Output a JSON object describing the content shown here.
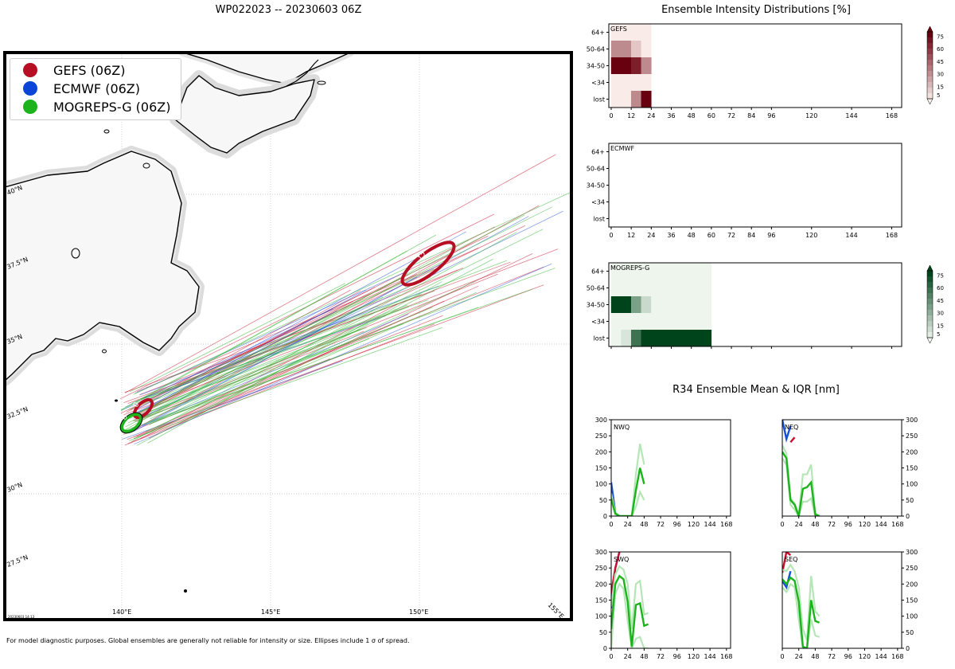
{
  "map": {
    "title": "WP022023 -- 20230603 06Z",
    "lat_labels": [
      "40°N",
      "37.5°N",
      "35°N",
      "32.5°N",
      "30°N",
      "27.5°N"
    ],
    "lon_labels": [
      "140°E",
      "145°E",
      "150°E",
      "155°E"
    ],
    "legend": [
      {
        "label": "GEFS (06Z)",
        "color": "#b70e23"
      },
      {
        "label": "ECMWF (06Z)",
        "color": "#0b45d8"
      },
      {
        "label": "MOGREPS-G (06Z)",
        "color": "#1db31d"
      }
    ],
    "ellipse_labels": {
      "gefs_0": "0",
      "gefs_12": "12",
      "mogreps_0": "0"
    },
    "stamp": "20230603 14:13",
    "footnote": "For model diagnostic purposes. Global ensembles are generally not reliable for intensity or size. Ellipses include 1 σ of spread."
  },
  "intensity": {
    "title": "Ensemble Intensity Distributions [%]",
    "categories": [
      "64+",
      "50-64",
      "34-50",
      "<34",
      "lost"
    ],
    "x_ticks": [
      "0",
      "12",
      "24",
      "36",
      "48",
      "60",
      "72",
      "84",
      "96",
      "120",
      "144",
      "168"
    ],
    "colorbar_ticks": [
      "75",
      "60",
      "45",
      "30",
      "15",
      "5"
    ],
    "panels": [
      {
        "name": "GEFS",
        "label": "GEFS",
        "colormap": "reds"
      },
      {
        "name": "ECMWF",
        "label": "ECMWF",
        "colormap": "none"
      },
      {
        "name": "MOGREPS-G",
        "label": "MOGREPS-G",
        "colormap": "greens"
      }
    ]
  },
  "r34": {
    "title": "R34 Ensemble Mean & IQR [nm]",
    "x_ticks": [
      "0",
      "24",
      "48",
      "72",
      "96",
      "120",
      "144",
      "168"
    ],
    "y_ticks": [
      "300",
      "250",
      "200",
      "150",
      "100",
      "50",
      "0"
    ],
    "quadrants": [
      {
        "label": "NWQ"
      },
      {
        "label": "NEQ"
      },
      {
        "label": "SWQ"
      },
      {
        "label": "SEQ"
      }
    ]
  },
  "chart_data": [
    {
      "type": "heatmap",
      "title": "GEFS",
      "x_hours": [
        0,
        6,
        12,
        18
      ],
      "y_categories": [
        "64+",
        "50-64",
        "34-50",
        "<34",
        "lost"
      ],
      "values": [
        [
          3,
          3,
          3,
          3
        ],
        [
          35,
          35,
          15,
          3
        ],
        [
          80,
          80,
          70,
          35
        ],
        [
          3,
          3,
          3,
          3
        ],
        [
          3,
          3,
          35,
          80
        ]
      ],
      "colorbar_range": [
        0,
        80
      ]
    },
    {
      "type": "heatmap",
      "title": "ECMWF",
      "x_hours": [],
      "y_categories": [
        "64+",
        "50-64",
        "34-50",
        "<34",
        "lost"
      ],
      "values": []
    },
    {
      "type": "heatmap",
      "title": "MOGREPS-G",
      "x_hours": [
        0,
        6,
        12,
        18,
        24,
        30,
        36,
        42,
        48,
        54
      ],
      "y_categories": [
        "64+",
        "50-64",
        "34-50",
        "<34",
        "lost"
      ],
      "values": [
        [
          3,
          3,
          3,
          3,
          3,
          3,
          3,
          3,
          3,
          3
        ],
        [
          3,
          3,
          3,
          3,
          3,
          3,
          3,
          3,
          3,
          3
        ],
        [
          80,
          80,
          40,
          15,
          3,
          3,
          3,
          3,
          3,
          3
        ],
        [
          3,
          3,
          3,
          3,
          3,
          3,
          3,
          3,
          3,
          3
        ],
        [
          3,
          10,
          60,
          80,
          80,
          80,
          80,
          80,
          80,
          80
        ]
      ],
      "colorbar_range": [
        0,
        80
      ]
    },
    {
      "type": "line",
      "title": "NWQ",
      "xlim": [
        0,
        168
      ],
      "ylim": [
        0,
        300
      ],
      "series": [
        {
          "model": "ECMWF",
          "x": [
            0,
            6,
            12
          ],
          "mean": [
            105,
            10,
            0
          ]
        },
        {
          "model": "MOGREPS-G",
          "x": [
            0,
            6,
            12,
            18,
            24,
            30,
            36,
            42,
            48
          ],
          "mean": [
            55,
            8,
            0,
            0,
            0,
            0,
            80,
            150,
            100
          ],
          "q25": [
            45,
            5,
            0,
            0,
            0,
            0,
            30,
            75,
            50
          ],
          "q75": [
            70,
            12,
            0,
            0,
            0,
            0,
            130,
            225,
            160
          ]
        }
      ]
    },
    {
      "type": "line",
      "title": "NEQ",
      "xlim": [
        0,
        168
      ],
      "ylim": [
        0,
        300
      ],
      "series": [
        {
          "model": "ECMWF",
          "x": [
            0,
            6,
            12
          ],
          "mean": [
            300,
            240,
            280
          ]
        },
        {
          "model": "GEFS",
          "x": [
            12,
            18
          ],
          "mean": [
            230,
            245
          ]
        },
        {
          "model": "MOGREPS-G",
          "x": [
            0,
            6,
            12,
            18,
            24,
            30,
            36,
            42,
            48,
            54
          ],
          "mean": [
            200,
            180,
            50,
            35,
            0,
            85,
            90,
            105,
            5,
            0
          ],
          "q25": [
            180,
            160,
            35,
            20,
            0,
            45,
            45,
            55,
            0,
            0
          ],
          "q75": [
            220,
            195,
            55,
            40,
            5,
            130,
            130,
            160,
            10,
            0
          ]
        }
      ]
    },
    {
      "type": "line",
      "title": "SWQ",
      "xlim": [
        0,
        168
      ],
      "ylim": [
        0,
        300
      ],
      "series": [
        {
          "model": "ECMWF",
          "x": [
            0,
            6,
            12
          ],
          "mean": [
            125,
            250,
            300
          ]
        },
        {
          "model": "GEFS",
          "x": [
            0,
            6,
            12
          ],
          "mean": [
            170,
            250,
            300
          ]
        },
        {
          "model": "MOGREPS-G",
          "x": [
            0,
            6,
            12,
            18,
            24,
            30,
            36,
            42,
            48,
            54
          ],
          "mean": [
            60,
            200,
            225,
            215,
            145,
            5,
            135,
            140,
            70,
            75
          ],
          "q25": [
            0,
            170,
            200,
            185,
            85,
            0,
            30,
            35,
            0,
            0
          ],
          "q75": [
            130,
            230,
            255,
            245,
            200,
            60,
            200,
            210,
            105,
            110
          ]
        }
      ]
    },
    {
      "type": "line",
      "title": "SEQ",
      "xlim": [
        0,
        168
      ],
      "ylim": [
        0,
        300
      ],
      "series": [
        {
          "model": "ECMWF",
          "x": [
            0,
            6,
            12
          ],
          "mean": [
            210,
            190,
            240
          ]
        },
        {
          "model": "GEFS",
          "x": [
            0,
            6,
            12
          ],
          "mean": [
            235,
            300,
            290
          ]
        },
        {
          "model": "MOGREPS-G",
          "x": [
            0,
            6,
            12,
            18,
            24,
            30,
            36,
            42,
            48,
            54
          ],
          "mean": [
            215,
            200,
            220,
            210,
            145,
            5,
            0,
            150,
            85,
            80
          ],
          "q25": [
            190,
            175,
            200,
            190,
            90,
            0,
            0,
            90,
            40,
            35
          ],
          "q75": [
            245,
            240,
            260,
            240,
            190,
            60,
            25,
            225,
            115,
            100
          ]
        }
      ]
    }
  ]
}
